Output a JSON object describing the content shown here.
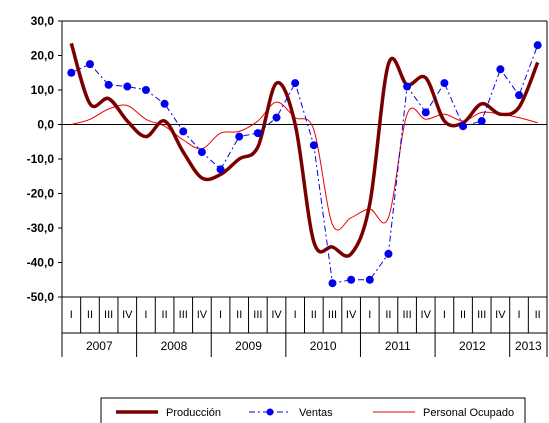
{
  "chart_data": {
    "type": "line",
    "title": "",
    "xlabel": "",
    "ylabel": "",
    "ylim": [
      -50,
      30
    ],
    "yticks": [
      30,
      20,
      10,
      0,
      -10,
      -20,
      -30,
      -40,
      -50
    ],
    "ytick_labels": [
      "30,0",
      "20,0",
      "10,0",
      "0,0",
      "-10,0",
      "-20,0",
      "-30,0",
      "-40,0",
      "-50,0"
    ],
    "x": [
      "2007-I",
      "2007-II",
      "2007-III",
      "2007-IV",
      "2008-I",
      "2008-II",
      "2008-III",
      "2008-IV",
      "2009-I",
      "2009-II",
      "2009-III",
      "2009-IV",
      "2010-I",
      "2010-II",
      "2010-III",
      "2010-IV",
      "2011-I",
      "2011-II",
      "2011-III",
      "2011-IV",
      "2012-I",
      "2012-II",
      "2012-III",
      "2012-IV",
      "2013-I",
      "2013-II"
    ],
    "quarter_labels": [
      "I",
      "II",
      "III",
      "IV",
      "I",
      "II",
      "III",
      "IV",
      "I",
      "II",
      "III",
      "IV",
      "I",
      "II",
      "III",
      "IV",
      "I",
      "II",
      "III",
      "IV",
      "I",
      "II",
      "III",
      "IV",
      "I",
      "II"
    ],
    "years": [
      {
        "label": "2007",
        "start": 0,
        "count": 4
      },
      {
        "label": "2008",
        "start": 4,
        "count": 4
      },
      {
        "label": "2009",
        "start": 8,
        "count": 4
      },
      {
        "label": "2010",
        "start": 12,
        "count": 4
      },
      {
        "label": "2011",
        "start": 16,
        "count": 4
      },
      {
        "label": "2012",
        "start": 20,
        "count": 4
      },
      {
        "label": "2013",
        "start": 24,
        "count": 2
      }
    ],
    "grid": false,
    "legend_position": "bottom",
    "series": [
      {
        "name": "Producción",
        "color": "#7a0000",
        "style": "thick-solid",
        "values": [
          23.5,
          6.0,
          7.5,
          1.0,
          -3.5,
          1.0,
          -8.0,
          -15.5,
          -14.5,
          -10.0,
          -6.5,
          12.0,
          0.0,
          -34.0,
          -35.5,
          -37.5,
          -23.0,
          17.5,
          11.5,
          13.5,
          1.0,
          0.5,
          6.0,
          3.0,
          5.0,
          18.0
        ]
      },
      {
        "name": "Ventas",
        "color": "#0000ee",
        "style": "dashdot-markers",
        "values": [
          15.0,
          17.5,
          11.5,
          11.0,
          10.0,
          6.0,
          -2.0,
          -8.0,
          -13.0,
          -3.5,
          -2.5,
          2.0,
          12.0,
          -6.0,
          -46.0,
          -45.0,
          -45.0,
          -37.5,
          11.0,
          3.5,
          12.0,
          -0.5,
          1.0,
          16.0,
          8.5,
          23.0
        ]
      },
      {
        "name": "Personal Ocupado",
        "color": "#ee0000",
        "style": "thin-solid",
        "values": [
          0.0,
          1.5,
          4.5,
          5.5,
          1.5,
          -0.5,
          -4.5,
          -7.0,
          -2.5,
          -2.0,
          1.0,
          6.5,
          2.0,
          -1.5,
          -29.0,
          -27.0,
          -24.5,
          -27.0,
          3.0,
          1.5,
          3.0,
          1.0,
          3.5,
          3.0,
          2.0,
          0.5
        ]
      }
    ]
  }
}
